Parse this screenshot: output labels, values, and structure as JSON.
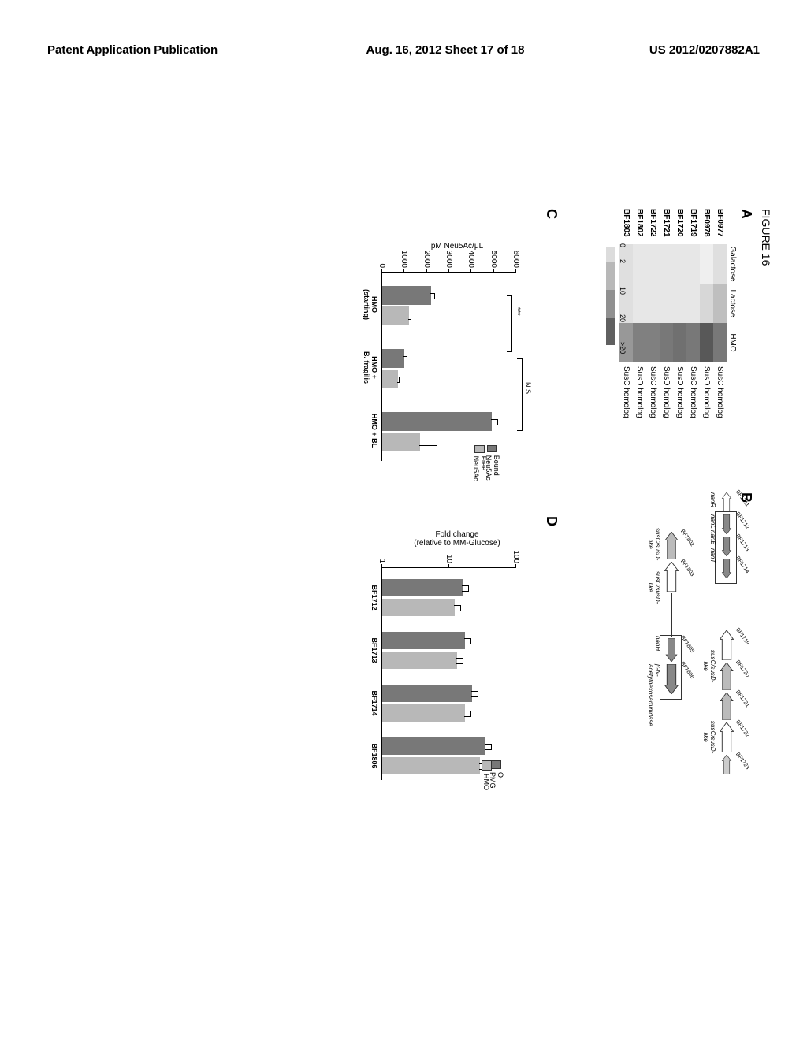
{
  "header": {
    "left": "Patent Application Publication",
    "center": "Aug. 16, 2012  Sheet 17 of 18",
    "right": "US 2012/0207882A1"
  },
  "figure_title": "FIGURE 16",
  "panels": {
    "A": "A",
    "B": "B",
    "C": "C",
    "D": "D"
  },
  "heatmap": {
    "cols": [
      "Galactose",
      "Lactose",
      "HMO"
    ],
    "rows": [
      {
        "g": "BF0977",
        "v": [
          4,
          8,
          17
        ],
        "a": "SusC homolog"
      },
      {
        "g": "BF0978",
        "v": [
          2,
          5,
          21
        ],
        "a": "SusD homolog"
      },
      {
        "g": "BF1719",
        "v": [
          3,
          3,
          17
        ],
        "a": "SusC homolog"
      },
      {
        "g": "BF1720",
        "v": [
          3,
          3,
          18
        ],
        "a": "SusD homolog"
      },
      {
        "g": "BF1721",
        "v": [
          3,
          3,
          17
        ],
        "a": "SusD homolog"
      },
      {
        "g": "BF1722",
        "v": [
          3,
          3,
          16
        ],
        "a": "SusC homolog"
      },
      {
        "g": "BF1802",
        "v": [
          3,
          3,
          16
        ],
        "a": "SusD homolog"
      },
      {
        "g": "BF1803",
        "v": [
          4,
          4,
          13
        ],
        "a": "SusC homolog"
      }
    ],
    "scale": {
      "ticks": [
        "0",
        "2",
        "10",
        "20",
        ">20"
      ],
      "colors": [
        "#ffffff",
        "#dcdcdc",
        "#b8b8b8",
        "#909090",
        "#606060"
      ]
    }
  },
  "gene_diag": {
    "r1": {
      "genes": [
        "BF1711",
        "BF1712",
        "BF1713",
        "BF1714",
        "BF1719",
        "BF1720",
        "BF1721",
        "BF1722",
        "BF1723"
      ],
      "labels": [
        "nanR",
        "nanL",
        "nanE",
        "nanT",
        "susC/susD-\nlike",
        "",
        "susC/susD-\nlike",
        ""
      ]
    },
    "r2": {
      "genes": [
        "BF1802",
        "BF1803",
        "BF1805",
        "BF1806"
      ],
      "labels": [
        "susC/susD-\nlike",
        "susC/susD-\nlike",
        "nanH",
        "β-N-\nacetylhexosaminidase"
      ]
    }
  },
  "panelC": {
    "ylabel": "pM Neu5Ac/μL",
    "ymax": 6000,
    "yticks": [
      0,
      1000,
      2000,
      3000,
      4000,
      5000,
      6000
    ],
    "groups": [
      {
        "label": "HMO\n(starting)",
        "bound": 2200,
        "free": 1200,
        "eb": 150,
        "ef": 120
      },
      {
        "label": "HMO +\nB. fragilis",
        "bound": 1000,
        "free": 700,
        "eb": 120,
        "ef": 90
      },
      {
        "label": "HMO + BL",
        "bound": 4900,
        "free": 1700,
        "eb": 300,
        "ef": 760
      }
    ],
    "legend": [
      "Bound Neu5Ac",
      "Free Neu5Ac"
    ],
    "sig": [
      "***",
      "N.S."
    ],
    "colors": {
      "bound": "#787878",
      "free": "#b8b8b8"
    }
  },
  "panelD": {
    "ylabel": "Fold change\n(relative to MM-Glucose)",
    "yticks": [
      1,
      10,
      100
    ],
    "groups": [
      "BF1712",
      "BF1713",
      "BF1714",
      "BF1806"
    ],
    "series": [
      {
        "name": "O-PMG",
        "vals": [
          16,
          17,
          22,
          35
        ],
        "color": "#787878"
      },
      {
        "name": "HMO",
        "vals": [
          12,
          13,
          17,
          29
        ],
        "color": "#b8b8b8"
      }
    ],
    "legend": [
      "O-PMG",
      "HMO"
    ]
  }
}
